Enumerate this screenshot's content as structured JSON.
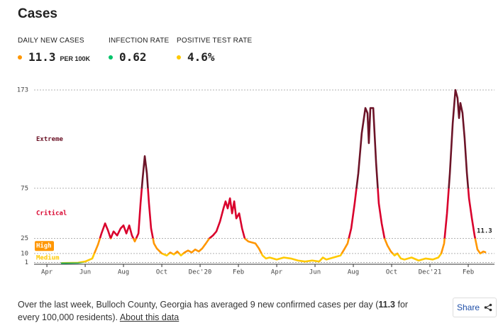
{
  "header": {
    "title": "Cases"
  },
  "metrics": [
    {
      "label": "DAILY NEW CASES",
      "value": 11.3,
      "unit": "PER 100K",
      "color": "#ff9600"
    },
    {
      "label": "INFECTION RATE",
      "value": 0.62,
      "color": "#00c46a"
    },
    {
      "label": "POSITIVE TEST RATE",
      "value": "4.6%",
      "color": "#ffc900"
    }
  ],
  "chart_data": {
    "type": "line",
    "x": [
      0.78,
      1.63,
      2,
      2.37,
      2.67,
      2.85,
      3.04,
      3.19,
      3.33,
      3.48,
      3.67,
      3.85,
      4,
      4.15,
      4.3,
      4.44,
      4.59,
      4.78,
      4.89,
      5,
      5.11,
      5.22,
      5.33,
      5.44,
      5.59,
      5.74,
      6,
      6.26,
      6.44,
      6.63,
      6.81,
      7,
      7.19,
      7.37,
      7.56,
      7.74,
      7.93,
      8.11,
      8.3,
      8.48,
      8.67,
      8.85,
      9.04,
      9.22,
      9.33,
      9.44,
      9.56,
      9.67,
      9.78,
      9.89,
      10.04,
      10.19,
      10.33,
      10.52,
      10.89,
      11.07,
      11.26,
      11.44,
      11.63,
      12,
      12.37,
      12.74,
      13.11,
      13.48,
      13.85,
      14.22,
      14.41,
      14.59,
      14.96,
      15.33,
      15.52,
      15.7,
      15.89,
      16.07,
      16.26,
      16.44,
      16.63,
      16.74,
      16.81,
      16.89,
      17.04,
      17.19,
      17.33,
      17.48,
      17.63,
      17.78,
      17.96,
      18.15,
      18.3,
      18.48,
      18.67,
      19.04,
      19.41,
      19.78,
      20.15,
      20.44,
      20.59,
      20.74,
      20.89,
      21.04,
      21.19,
      21.33,
      21.44,
      21.52,
      21.59,
      21.7,
      21.81,
      21.93,
      22.04,
      22.19,
      22.33,
      22.48,
      22.63,
      22.78,
      22.89
    ],
    "values": [
      0.5,
      0.8,
      2,
      5,
      19,
      30,
      40,
      33,
      25,
      32,
      28,
      35,
      38,
      30,
      38,
      28,
      22,
      30,
      60,
      85,
      107,
      90,
      60,
      35,
      20,
      15,
      10,
      8,
      11,
      9,
      12,
      8,
      11,
      13,
      11,
      14,
      12,
      15,
      20,
      25,
      28,
      32,
      42,
      55,
      62,
      55,
      65,
      50,
      62,
      45,
      50,
      35,
      25,
      22,
      20,
      15,
      8,
      5,
      6,
      4,
      6,
      5,
      3,
      2,
      3,
      2,
      6,
      4,
      6,
      8,
      14,
      20,
      35,
      60,
      90,
      130,
      155,
      150,
      120,
      155,
      155,
      100,
      60,
      40,
      25,
      18,
      12,
      8,
      10,
      5,
      4,
      6,
      3,
      5,
      4,
      6,
      10,
      20,
      50,
      90,
      140,
      173,
      165,
      145,
      160,
      150,
      125,
      90,
      65,
      45,
      28,
      14,
      10,
      12,
      11.3
    ],
    "xlim": [
      -0.67,
      23.37
    ],
    "xticks": [
      {
        "value": 0,
        "label": "Apr"
      },
      {
        "value": 2,
        "label": "Jun"
      },
      {
        "value": 4,
        "label": "Aug"
      },
      {
        "value": 6,
        "label": "Oct"
      },
      {
        "value": 8,
        "label": "Dec'20"
      },
      {
        "value": 10,
        "label": "Feb"
      },
      {
        "value": 12,
        "label": "Apr"
      },
      {
        "value": 14,
        "label": "Jun"
      },
      {
        "value": 16,
        "label": "Aug"
      },
      {
        "value": 18,
        "label": "Oct"
      },
      {
        "value": 20,
        "label": "Dec'21"
      },
      {
        "value": 22,
        "label": "Feb"
      }
    ],
    "ylim": [
      0,
      173
    ],
    "yticks": [
      1,
      10,
      25,
      75,
      173
    ],
    "grid": true,
    "zones": [
      {
        "name": "Extreme",
        "min": 75,
        "color": "#6c1428"
      },
      {
        "name": "Critical",
        "min": 25,
        "color": "#d9002c"
      },
      {
        "name": "High",
        "min": 10,
        "color": "#ff9600"
      },
      {
        "name": "Medium",
        "min": 1,
        "color": "#ffc900"
      },
      {
        "min": 0,
        "color": "#2bb55a"
      }
    ]
  },
  "footer": {
    "before": "Over the last week, Bulloch County, Georgia has averaged 9 new confirmed cases per day (",
    "highlight": "11.3",
    "after": " for every 100,000 residents). ",
    "link": "About this data",
    "share": "Share"
  }
}
